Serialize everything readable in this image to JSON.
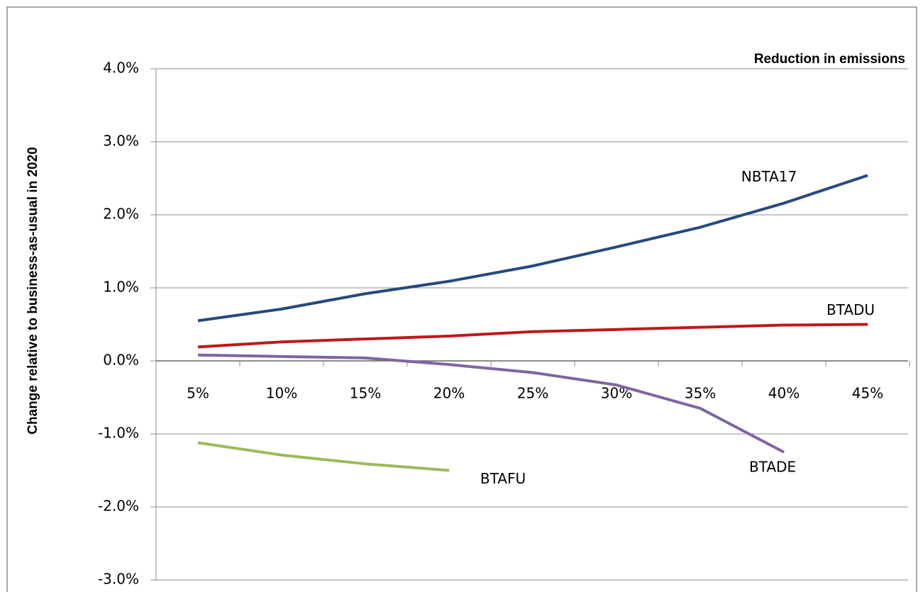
{
  "chart_data": {
    "type": "line",
    "x_label": "Reduction in emissions",
    "y_label": "Change relative to business-as-usual  in 2020",
    "categories": [
      "5%",
      "10%",
      "15%",
      "20%",
      "25%",
      "30%",
      "35%",
      "40%",
      "45%"
    ],
    "series": [
      {
        "name": "NBTA17",
        "color": "#254a7d",
        "values": [
          0.55,
          0.71,
          0.92,
          1.09,
          1.3,
          1.56,
          1.83,
          2.16,
          2.54
        ]
      },
      {
        "name": "BTADU",
        "color": "#c0171b",
        "values": [
          0.19,
          0.26,
          0.3,
          0.34,
          0.4,
          0.43,
          0.46,
          0.49,
          0.5
        ]
      },
      {
        "name": "BTADE",
        "color": "#8064a2",
        "values": [
          0.08,
          0.06,
          0.04,
          -0.05,
          -0.16,
          -0.33,
          -0.65,
          -1.25,
          null
        ]
      },
      {
        "name": "BTAFU",
        "color": "#9bbb59",
        "values": [
          -1.12,
          -1.29,
          -1.41,
          -1.5,
          null,
          null,
          null,
          null,
          null
        ]
      }
    ],
    "ylim": [
      -3,
      4
    ],
    "yticks": [
      {
        "value": -3,
        "label": "-3.0%"
      },
      {
        "value": -2,
        "label": "-2.0%"
      },
      {
        "value": -1,
        "label": "-1.0%"
      },
      {
        "value": 0,
        "label": "0.0%"
      },
      {
        "value": 1,
        "label": "1.0%"
      },
      {
        "value": 2,
        "label": "2.0%"
      },
      {
        "value": 3,
        "label": "3.0%"
      },
      {
        "value": 4,
        "label": "4.0%"
      }
    ],
    "grid": true
  }
}
